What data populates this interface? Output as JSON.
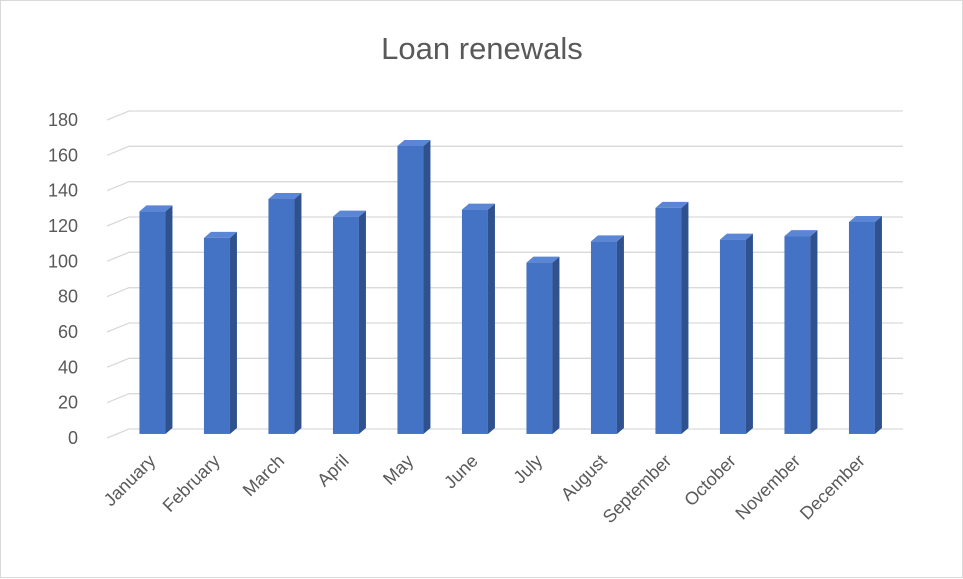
{
  "chart_data": {
    "type": "bar",
    "title": "Loan renewals",
    "xlabel": "",
    "ylabel": "",
    "categories": [
      "January",
      "February",
      "March",
      "April",
      "May",
      "June",
      "July",
      "August",
      "September",
      "October",
      "November",
      "December"
    ],
    "values": [
      126,
      111,
      133,
      123,
      163,
      127,
      97,
      109,
      128,
      110,
      112,
      120
    ],
    "ylim": [
      0,
      180
    ],
    "yticks": [
      0,
      20,
      40,
      60,
      80,
      100,
      120,
      140,
      160,
      180
    ],
    "grid": true,
    "legend": "none",
    "style": "3d-column",
    "colors": {
      "bar_front": "#4472c4",
      "bar_side": "#2f528f",
      "bar_top": "#5b86d6",
      "grid": "#d9d9d9",
      "text": "#595959"
    }
  }
}
